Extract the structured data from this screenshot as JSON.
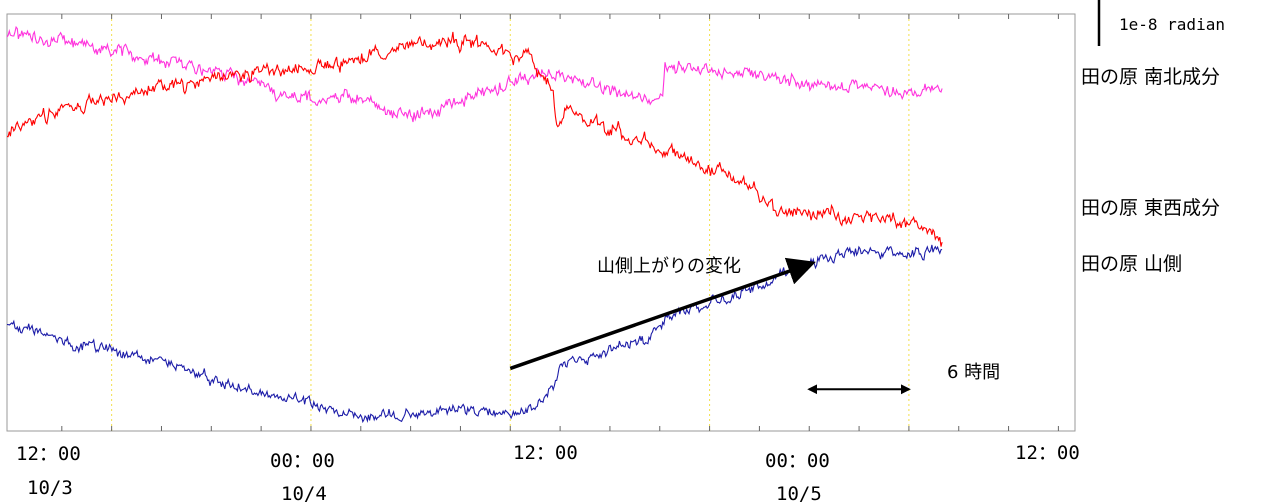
{
  "colors": {
    "north_south": "#ff33dd",
    "east_west": "#ff0000",
    "mountain": "#1c1ca8",
    "gridline": "#f2e04a",
    "frame": "#999999"
  },
  "scale_label": "1e-8 radian",
  "chart_data": {
    "type": "line",
    "x_unit": "hour",
    "x_start": "10/3 09:00",
    "xlim": [
      -3.3,
      61.0
    ],
    "ylim": [
      0,
      100
    ],
    "y_scale_unit": "1e-8 radian",
    "y_tick_labels": false,
    "grid": "vertical-dotted",
    "x_ticks": [
      {
        "hour": 3,
        "time": "12：00",
        "date": "10/3"
      },
      {
        "hour": 15,
        "time": "00：00",
        "date": "10/4"
      },
      {
        "hour": 27,
        "time": "12：00",
        "date": ""
      },
      {
        "hour": 39,
        "time": "00：00",
        "date": "10/5"
      },
      {
        "hour": 51,
        "time": "12：00",
        "date": ""
      }
    ],
    "series": [
      {
        "name": "田の原 南北成分",
        "color": "#ff33dd",
        "noise": 2.2,
        "points": [
          [
            -3.3,
            95.5
          ],
          [
            -1.5,
            94.0
          ],
          [
            0.5,
            93.5
          ],
          [
            2,
            91.5
          ],
          [
            3.5,
            90.5
          ],
          [
            5.5,
            89.0
          ],
          [
            7.5,
            88.0
          ],
          [
            9.5,
            85.5
          ],
          [
            11.5,
            84.0
          ],
          [
            12.5,
            82.0
          ],
          [
            13,
            81.0
          ],
          [
            15,
            80.0
          ],
          [
            17,
            80.0
          ],
          [
            19,
            78.0
          ],
          [
            21,
            75.5
          ],
          [
            22.5,
            76.5
          ],
          [
            24.5,
            80.5
          ],
          [
            26.5,
            82.5
          ],
          [
            28,
            84.5
          ],
          [
            29.5,
            85.5
          ],
          [
            31,
            84.0
          ],
          [
            33,
            82.5
          ],
          [
            35,
            80.5
          ],
          [
            36.2,
            80.5
          ],
          [
            36.3,
            87.5
          ],
          [
            38,
            87.0
          ],
          [
            39.5,
            86.5
          ],
          [
            41.5,
            85.5
          ],
          [
            43,
            84.5
          ],
          [
            45,
            83.5
          ],
          [
            47,
            83.0
          ],
          [
            49,
            82.0
          ],
          [
            51,
            81.5
          ],
          [
            53,
            81.5
          ]
        ]
      },
      {
        "name": "田の原 東西成分",
        "color": "#ff0000",
        "noise": 2.4,
        "points": [
          [
            -3.3,
            71.5
          ],
          [
            -1.5,
            74.5
          ],
          [
            0.5,
            77.0
          ],
          [
            3,
            80.0
          ],
          [
            6,
            82.5
          ],
          [
            9,
            84.5
          ],
          [
            12,
            86.0
          ],
          [
            14,
            86.5
          ],
          [
            15.5,
            87.5
          ],
          [
            17,
            88.5
          ],
          [
            19,
            90.5
          ],
          [
            21,
            93.0
          ],
          [
            22.5,
            94.0
          ],
          [
            24.5,
            93.5
          ],
          [
            26.5,
            91.0
          ],
          [
            28,
            89.0
          ],
          [
            29,
            85.0
          ],
          [
            29.6,
            80.5
          ],
          [
            29.8,
            73.0
          ],
          [
            30.3,
            77.0
          ],
          [
            32,
            74.0
          ],
          [
            34,
            71.0
          ],
          [
            36,
            68.0
          ],
          [
            38,
            64.5
          ],
          [
            40,
            61.5
          ],
          [
            41.5,
            58.5
          ],
          [
            42.5,
            54.0
          ],
          [
            44,
            52.0
          ],
          [
            45.5,
            52.0
          ],
          [
            47.5,
            51.5
          ],
          [
            49,
            51.0
          ],
          [
            51,
            50.0
          ],
          [
            52,
            49.0
          ],
          [
            53,
            45.5
          ]
        ]
      },
      {
        "name": "田の原 山側",
        "color": "#1c1ca8",
        "noise": 1.8,
        "points": [
          [
            -3.3,
            26.0
          ],
          [
            -1.5,
            23.0
          ],
          [
            0.5,
            21.0
          ],
          [
            2.5,
            19.5
          ],
          [
            4.5,
            18.0
          ],
          [
            7,
            15.5
          ],
          [
            9,
            12.5
          ],
          [
            11,
            10.5
          ],
          [
            12.5,
            8.5
          ],
          [
            15,
            7.0
          ],
          [
            16.5,
            4.5
          ],
          [
            18.5,
            3.5
          ],
          [
            20,
            4.0
          ],
          [
            22,
            4.5
          ],
          [
            24,
            5.0
          ],
          [
            26,
            4.5
          ],
          [
            27,
            4.0
          ],
          [
            28.5,
            6.0
          ],
          [
            29.8,
            12.0
          ],
          [
            30,
            16.0
          ],
          [
            32,
            17.5
          ],
          [
            34,
            21.5
          ],
          [
            35,
            21.5
          ],
          [
            36.5,
            27.0
          ],
          [
            38,
            29.0
          ],
          [
            40,
            32.0
          ],
          [
            42,
            34.5
          ],
          [
            44,
            39.0
          ],
          [
            45,
            39.5
          ],
          [
            46.5,
            42.0
          ],
          [
            48,
            43.0
          ],
          [
            50,
            42.5
          ],
          [
            51.5,
            42.5
          ],
          [
            53,
            44.0
          ]
        ]
      }
    ],
    "annotations": {
      "trend_text": "山側上がりの変化",
      "trend_arrow": {
        "from": [
          27,
          15.0
        ],
        "to": [
          45,
          40.0
        ]
      },
      "interval_text": "6 時間",
      "interval_arrow": {
        "from": [
          45,
          10.0
        ],
        "to": [
          51,
          10.0
        ]
      }
    }
  }
}
